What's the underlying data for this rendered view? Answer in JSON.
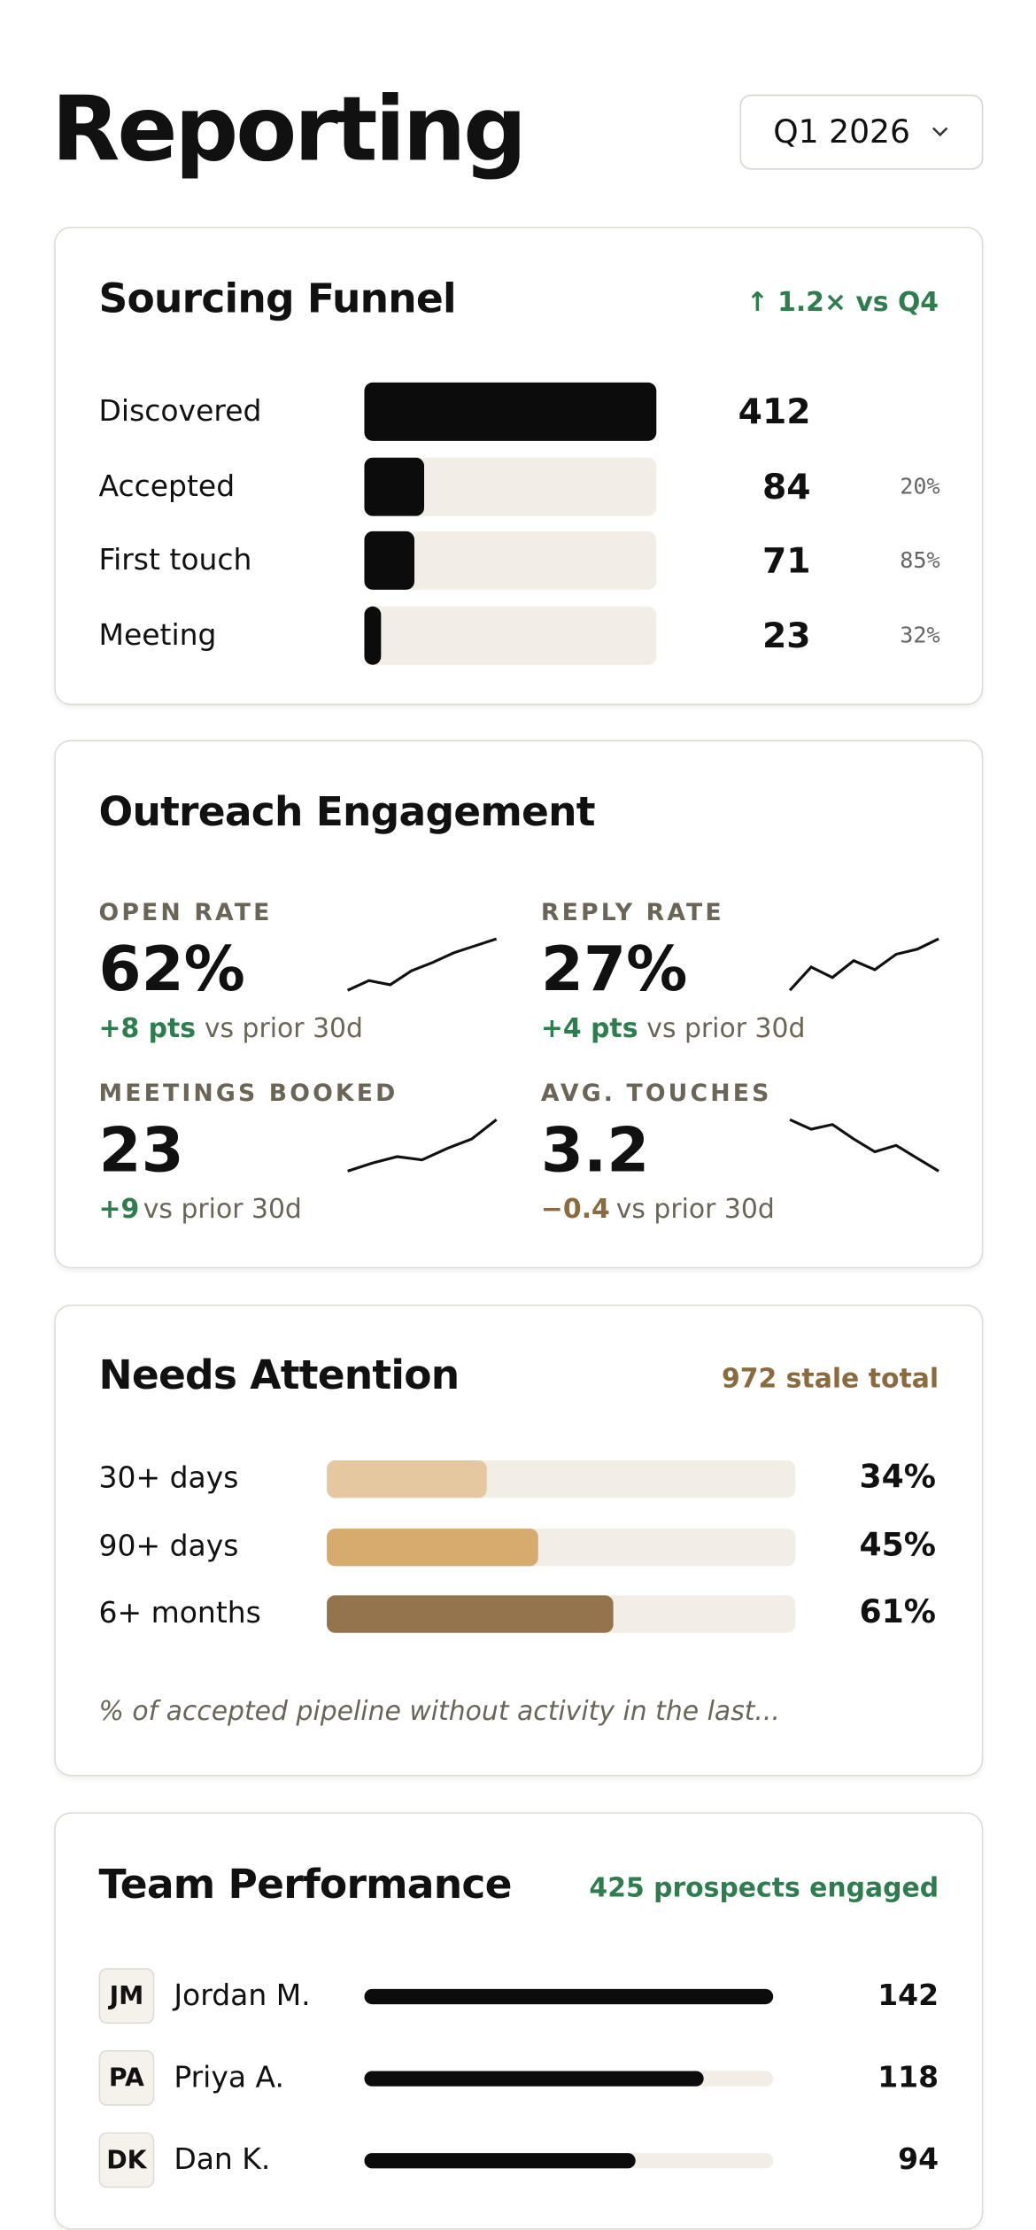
{
  "header": {
    "title": "Reporting",
    "period": "Q1 2026"
  },
  "funnel": {
    "title": "Sourcing Funnel",
    "badge": "↑ 1.2× vs Q4",
    "rows": [
      {
        "label": "Discovered",
        "count": 412
      },
      {
        "label": "Accepted",
        "count": 84,
        "conversion": "20%"
      },
      {
        "label": "First touch",
        "count": 71,
        "conversion": "85%"
      },
      {
        "label": "Meeting",
        "count": 23,
        "conversion": "32%"
      }
    ]
  },
  "engagement": {
    "title": "Outreach Engagement",
    "metrics": [
      {
        "label": "OPEN RATE",
        "value": "62%",
        "delta": "+8 pts",
        "compare": "vs prior 30d",
        "tone": "positive",
        "spark": [
          10,
          17,
          14,
          24,
          30,
          37,
          42,
          47
        ]
      },
      {
        "label": "REPLY RATE",
        "value": "27%",
        "delta": "+4 pts",
        "compare": "vs prior 30d",
        "tone": "positive",
        "spark": [
          12,
          30,
          22,
          35,
          28,
          40,
          44,
          52
        ]
      },
      {
        "label": "MEETINGS BOOKED",
        "value": "23",
        "delta": "+9",
        "compare": "vs prior 30d",
        "tone": "positive",
        "spark": [
          10,
          15,
          19,
          17,
          24,
          30,
          42
        ]
      },
      {
        "label": "AVG. TOUCHES",
        "value": "3.2",
        "delta": "−0.4",
        "compare": "vs prior 30d",
        "tone": "negative",
        "spark": [
          40,
          34,
          37,
          28,
          20,
          24,
          16,
          8
        ]
      }
    ]
  },
  "attention": {
    "title": "Needs Attention",
    "summary": "972 stale total",
    "xlim": [
      0,
      100
    ],
    "rows": [
      {
        "label": "30+ days",
        "value": 34,
        "value_label": "34%",
        "color": "#e5c8a0"
      },
      {
        "label": "90+ days",
        "value": 45,
        "value_label": "45%",
        "color": "#d7aa6e"
      },
      {
        "label": "6+ months",
        "value": 61,
        "value_label": "61%",
        "color": "#93744c"
      }
    ],
    "note": "% of accepted pipeline without activity in the last..."
  },
  "team": {
    "title": "Team Performance",
    "summary": "425 prospects engaged",
    "members": [
      {
        "initials": "JM",
        "name": "Jordan M.",
        "value": 142
      },
      {
        "initials": "PA",
        "name": "Priya A.",
        "value": 118
      },
      {
        "initials": "DK",
        "name": "Dan K.",
        "value": 94
      }
    ]
  }
}
